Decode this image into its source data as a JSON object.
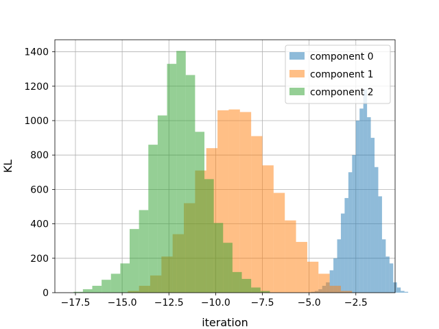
{
  "chart_data": {
    "type": "bar",
    "subtype": "histogram",
    "title": "",
    "xlabel": "iteration",
    "ylabel": "KL",
    "xlim": [
      -18.6,
      -0.4
    ],
    "ylim": [
      0,
      1470
    ],
    "x_ticks": [
      -17.5,
      -15.0,
      -12.5,
      -10.0,
      -7.5,
      -5.0,
      -2.5
    ],
    "x_tick_labels": [
      "−17.5",
      "−15.0",
      "−12.5",
      "−10.0",
      "−7.5",
      "−5.0",
      "−2.5"
    ],
    "y_ticks": [
      0,
      200,
      400,
      600,
      800,
      1000,
      1200,
      1400
    ],
    "y_tick_labels": [
      "0",
      "200",
      "400",
      "600",
      "800",
      "1000",
      "1200",
      "1400"
    ],
    "grid": true,
    "legend_position": "top-right",
    "alpha": 0.5,
    "series": [
      {
        "name": "component 0",
        "color": "#1f77b4",
        "bin_start": -4.9,
        "bin_width": 0.2,
        "values": [
          5,
          10,
          20,
          40,
          60,
          130,
          200,
          310,
          460,
          550,
          700,
          800,
          1000,
          1070,
          1180,
          1020,
          900,
          730,
          560,
          310,
          210,
          170,
          60,
          30,
          10,
          5
        ]
      },
      {
        "name": "component 1",
        "color": "#ff7f0e",
        "bin_start": -14.7,
        "bin_width": 0.6,
        "values": [
          10,
          40,
          100,
          210,
          340,
          520,
          710,
          840,
          1060,
          1065,
          1050,
          910,
          740,
          580,
          420,
          295,
          180,
          110,
          40,
          10
        ]
      },
      {
        "name": "component 2",
        "color": "#2ca02c",
        "bin_start": -17.6,
        "bin_width": 0.5,
        "values": [
          5,
          20,
          40,
          75,
          110,
          170,
          370,
          480,
          860,
          1030,
          1330,
          1405,
          1265,
          935,
          660,
          405,
          290,
          120,
          80,
          30,
          10
        ]
      }
    ]
  }
}
